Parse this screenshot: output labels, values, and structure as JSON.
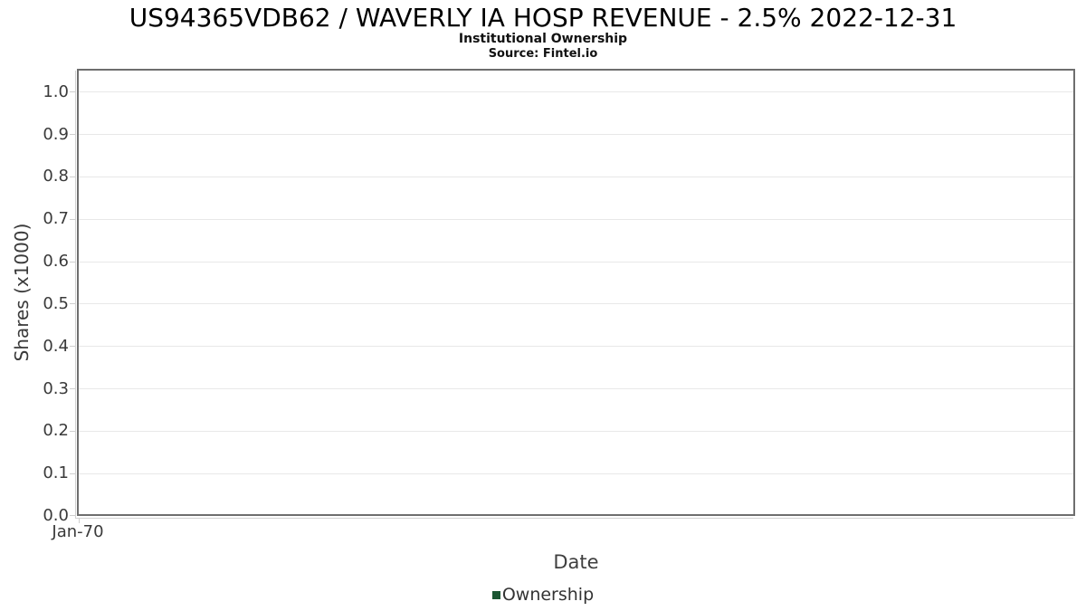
{
  "chart_data": {
    "type": "line",
    "title": "US94365VDB62 / WAVERLY IA HOSP REVENUE - 2.5% 2022-12-31",
    "subtitle": "Institutional Ownership",
    "source": "Source: Fintel.io",
    "xlabel": "Date",
    "ylabel": "Shares (x1000)",
    "x_tick_labels": [
      "Jan-70"
    ],
    "y_tick_labels": [
      "0.0",
      "0.1",
      "0.2",
      "0.3",
      "0.4",
      "0.5",
      "0.6",
      "0.7",
      "0.8",
      "0.9",
      "1.0"
    ],
    "ylim": [
      0,
      1.055
    ],
    "grid": true,
    "legend": {
      "position": "bottom-center",
      "entries": [
        {
          "label": "Ownership",
          "color": "#1b5632"
        }
      ]
    },
    "series": [
      {
        "name": "Ownership",
        "color": "#1b5632",
        "x": [],
        "y": []
      }
    ]
  },
  "colors": {
    "plot_border": "#6e6e6e",
    "gridline": "#e8e8e8",
    "axis_line": "#d2d2d2",
    "tick_mark": "#cfcfcf",
    "tick_text": "#3a3a3a",
    "title_text": "#000000",
    "background": "#ffffff"
  }
}
